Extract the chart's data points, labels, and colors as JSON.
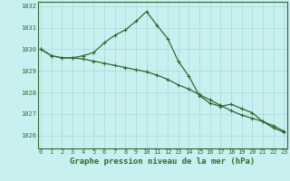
{
  "title": "Graphe pression niveau de la mer (hPa)",
  "bg_color": "#c8f0f0",
  "grid_color": "#b0dede",
  "line_color": "#2d6b2d",
  "x_ticks": [
    0,
    1,
    2,
    3,
    4,
    5,
    6,
    7,
    8,
    9,
    10,
    11,
    12,
    13,
    14,
    15,
    16,
    17,
    18,
    19,
    20,
    21,
    22,
    23
  ],
  "y_ticks": [
    1026,
    1027,
    1028,
    1029,
    1030,
    1031,
    1032
  ],
  "ylim": [
    1025.4,
    1032.2
  ],
  "xlim": [
    -0.3,
    23.3
  ],
  "series1": [
    1030.0,
    1029.7,
    1029.6,
    1029.6,
    1029.7,
    1029.85,
    1030.3,
    1030.65,
    1030.9,
    1031.3,
    1031.75,
    1031.1,
    1030.5,
    1029.45,
    1028.75,
    1027.85,
    1027.5,
    1027.35,
    1027.45,
    1027.25,
    1027.05,
    1026.65,
    1026.35,
    1026.15
  ],
  "series2": [
    1030.0,
    1029.7,
    1029.6,
    1029.6,
    1029.55,
    1029.45,
    1029.35,
    1029.25,
    1029.15,
    1029.05,
    1028.95,
    1028.8,
    1028.6,
    1028.35,
    1028.15,
    1027.9,
    1027.65,
    1027.4,
    1027.15,
    1026.95,
    1026.8,
    1026.65,
    1026.45,
    1026.2
  ],
  "title_fontsize": 6.5,
  "tick_fontsize": 5.0
}
